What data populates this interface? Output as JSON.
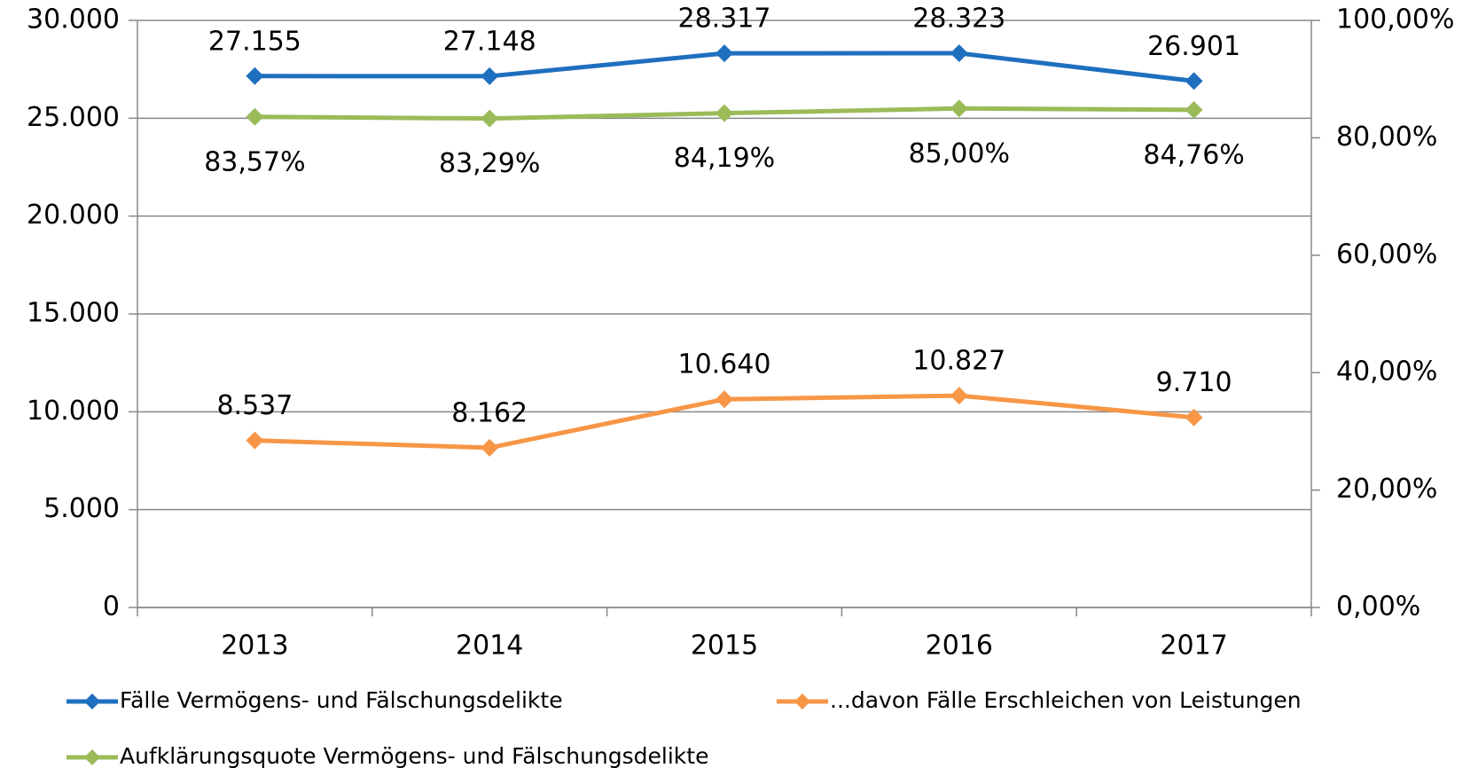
{
  "chart_data": {
    "type": "line",
    "categories": [
      "2013",
      "2014",
      "2015",
      "2016",
      "2017"
    ],
    "series": [
      {
        "name": "Fälle Vermögens- und Fälschungsdelikte",
        "color": "#1f6fbf",
        "values": [
          27155,
          27148,
          28317,
          28323,
          26901
        ],
        "value_labels": [
          "27.155",
          "27.148",
          "28.317",
          "28.323",
          "26.901"
        ]
      },
      {
        "name": "...davon Fälle Erschleichen von Leistungen",
        "color": "#f79646",
        "values": [
          8537,
          8162,
          10640,
          10827,
          9710
        ],
        "value_labels": [
          "8.537",
          "8.162",
          "10.640",
          "10.827",
          "9.710"
        ]
      },
      {
        "name": "Aufklärungsquote Vermögens- und Fälschungsdelikte",
        "color": "#9bbb59",
        "axis": "y2",
        "values": [
          83.57,
          83.29,
          84.19,
          85.0,
          84.76
        ],
        "value_labels": [
          "83,57%",
          "83,29%",
          "84,19%",
          "85,00%",
          "84,76%"
        ]
      }
    ],
    "ylim": [
      0,
      30000
    ],
    "yticks": [
      0,
      {
        "value": 5000,
        "label": "5.000"
      },
      {
        "value": 10000,
        "label": "10.000"
      },
      {
        "value": 15000,
        "label": "15.000"
      },
      {
        "value": 20000,
        "label": "20.000"
      },
      {
        "value": 25000,
        "label": "25.000"
      },
      {
        "value": 30000,
        "label": "30.000"
      }
    ],
    "y2lim": [
      0,
      100
    ],
    "y2ticks": [
      {
        "value": 0,
        "label": "0,00%"
      },
      {
        "value": 20,
        "label": "20,00%"
      },
      {
        "value": 40,
        "label": "40,00%"
      },
      {
        "value": 60,
        "label": "60,00%"
      },
      {
        "value": 80,
        "label": "80,00%"
      },
      {
        "value": 100,
        "label": "100,00%"
      }
    ],
    "grid": true,
    "legend": "bottom"
  }
}
